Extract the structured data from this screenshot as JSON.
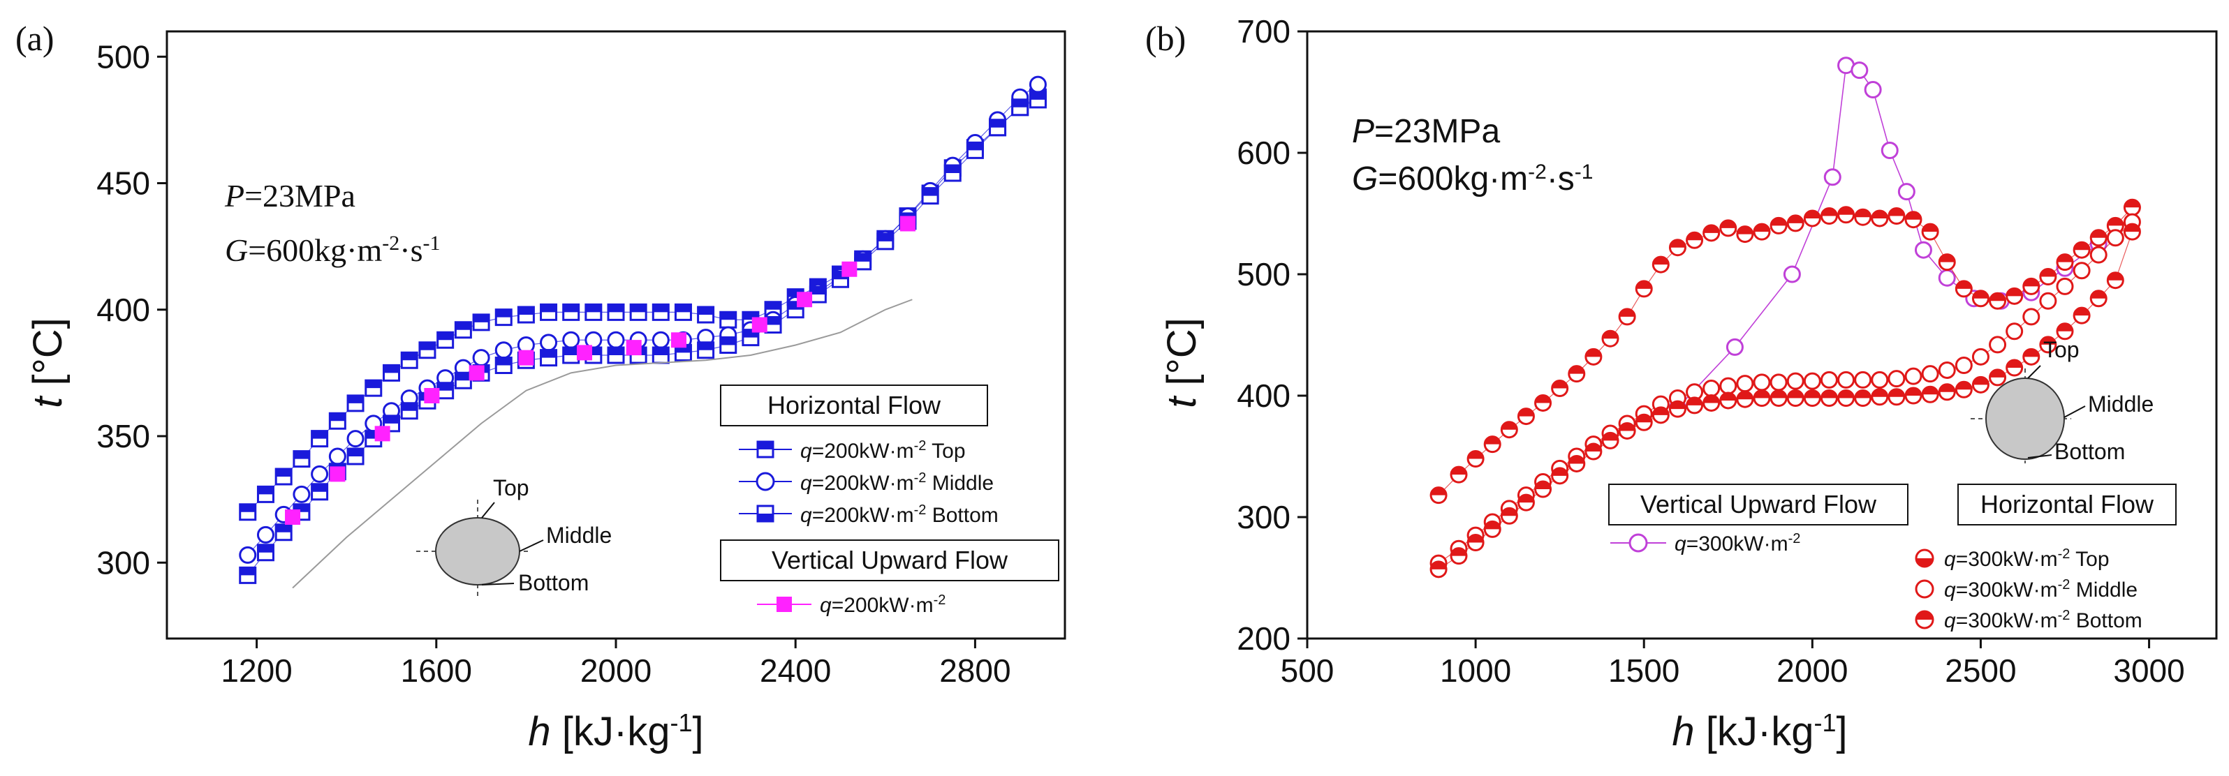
{
  "panels": {
    "a": {
      "letter": "(a)",
      "params": {
        "p_sym": "P",
        "p_val": "=23MPa",
        "g_sym": "G",
        "g_val": "=600kg·m",
        "g_exp1": "-2",
        "g_mid": "·s",
        "g_exp2": "-1"
      },
      "legend": {
        "group1": "Horizontal Flow",
        "group2": "Vertical Upward Flow",
        "q": "q",
        "q_unit": "=200kW·m",
        "q_exp": "-2",
        "items": [
          "Top",
          "Middle",
          "Bottom"
        ]
      },
      "pipe": {
        "top": "Top",
        "middle": "Middle",
        "bottom": "Bottom"
      }
    },
    "b": {
      "letter": "(b)",
      "params": {
        "p_sym": "P",
        "p_val": "=23MPa",
        "g_sym": "G",
        "g_val": "=600kg·m",
        "g_exp1": "-2",
        "g_mid": "·s",
        "g_exp2": "-1"
      },
      "legend": {
        "group1": "Vertical Upward Flow",
        "group2": "Horizontal Flow",
        "q": "q",
        "q_unit": "=300kW·m",
        "q_exp": "-2",
        "items": [
          "Top",
          "Middle",
          "Bottom"
        ]
      },
      "pipe": {
        "top": "Top",
        "middle": "Middle",
        "bottom": "Bottom"
      }
    }
  },
  "chart_data": [
    {
      "type": "scatter",
      "xlabel": "h [kJ·kg-1]",
      "ylabel": "t [°C]",
      "xlim": [
        1000,
        3000
      ],
      "ylim": [
        270,
        510
      ],
      "xticks": [
        1200,
        1600,
        2000,
        2400,
        2800
      ],
      "yticks": [
        300,
        350,
        400,
        450,
        500
      ],
      "grid": false,
      "series": [
        {
          "name": "q=200kW·m-2 Top",
          "color": "#1a1adb",
          "marker": "square-half",
          "x": [
            1180,
            1220,
            1260,
            1300,
            1340,
            1380,
            1420,
            1460,
            1500,
            1540,
            1580,
            1620,
            1660,
            1700,
            1750,
            1800,
            1850,
            1900,
            1950,
            2000,
            2050,
            2100,
            2150,
            2200,
            2250,
            2300,
            2350,
            2400,
            2450,
            2500,
            2550,
            2600,
            2650,
            2700,
            2750,
            2800,
            2850,
            2900,
            2940
          ],
          "y": [
            320,
            327,
            334,
            341,
            349,
            356,
            363,
            369,
            375,
            380,
            384,
            388,
            392,
            395,
            397,
            398,
            399,
            399,
            399,
            399,
            399,
            399,
            399,
            398,
            396,
            396,
            400,
            405,
            409,
            414,
            420,
            428,
            437,
            446,
            456,
            464,
            472,
            480,
            484
          ]
        },
        {
          "name": "q=200kW·m-2 Middle",
          "color": "#1a1adb",
          "marker": "circle-open",
          "x": [
            1180,
            1220,
            1260,
            1300,
            1340,
            1380,
            1420,
            1460,
            1500,
            1540,
            1580,
            1620,
            1660,
            1700,
            1750,
            1800,
            1850,
            1900,
            1950,
            2000,
            2050,
            2100,
            2150,
            2200,
            2250,
            2300,
            2350,
            2400,
            2450,
            2500,
            2550,
            2600,
            2650,
            2700,
            2750,
            2800,
            2850,
            2900,
            2940
          ],
          "y": [
            303,
            311,
            319,
            327,
            335,
            342,
            349,
            355,
            360,
            365,
            369,
            373,
            377,
            381,
            384,
            386,
            387,
            388,
            388,
            388,
            388,
            388,
            388,
            389,
            390,
            392,
            396,
            402,
            407,
            413,
            420,
            428,
            437,
            447,
            457,
            466,
            475,
            484,
            489
          ]
        },
        {
          "name": "q=200kW·m-2 Bottom",
          "color": "#1a1adb",
          "marker": "square-half",
          "x": [
            1180,
            1220,
            1260,
            1300,
            1340,
            1380,
            1420,
            1460,
            1500,
            1540,
            1580,
            1620,
            1660,
            1700,
            1750,
            1800,
            1850,
            1900,
            1950,
            2000,
            2050,
            2100,
            2150,
            2200,
            2250,
            2300,
            2350,
            2400,
            2450,
            2500,
            2550,
            2600,
            2650,
            2700,
            2750,
            2800,
            2850,
            2900,
            2940
          ],
          "y": [
            295,
            304,
            312,
            320,
            328,
            336,
            342,
            349,
            355,
            360,
            364,
            368,
            372,
            375,
            378,
            380,
            381,
            382,
            382,
            382,
            382,
            382,
            383,
            384,
            386,
            389,
            394,
            400,
            406,
            412,
            419,
            427,
            435,
            445,
            454,
            463,
            472,
            480,
            483
          ]
        },
        {
          "name": "q=200kW·m-2",
          "color": "#ff22ff",
          "marker": "square-filled",
          "x": [
            1280,
            1380,
            1480,
            1590,
            1690,
            1800,
            1930,
            2040,
            2140,
            2320,
            2420,
            2520,
            2650
          ],
          "y": [
            318,
            335,
            351,
            366,
            375,
            381,
            383,
            385,
            388,
            394,
            404,
            416,
            434
          ]
        },
        {
          "name": "",
          "color": "#9a9a9a",
          "marker": "line",
          "x": [
            1280,
            1400,
            1500,
            1600,
            1700,
            1800,
            1900,
            2000,
            2100,
            2200,
            2300,
            2400,
            2500,
            2600,
            2660
          ],
          "y": [
            290,
            310,
            325,
            340,
            355,
            368,
            375,
            378,
            379,
            380,
            382,
            386,
            391,
            400,
            404
          ]
        }
      ]
    },
    {
      "type": "scatter",
      "xlabel": "h [kJ·kg-1]",
      "ylabel": "t [°C]",
      "xlim": [
        500,
        3200
      ],
      "ylim": [
        200,
        700
      ],
      "xticks": [
        500,
        1000,
        1500,
        2000,
        2500,
        3000
      ],
      "yticks": [
        200,
        300,
        400,
        500,
        600,
        700
      ],
      "grid": false,
      "series": [
        {
          "name": "q=300kW·m-2",
          "color": "#c040d8",
          "marker": "circle-open-line",
          "x": [
            1600,
            1770,
            1940,
            2060,
            2100,
            2140,
            2180,
            2230,
            2280,
            2330,
            2400,
            2480,
            2560,
            2650,
            2750,
            2850
          ],
          "y": [
            390,
            440,
            500,
            580,
            672,
            668,
            652,
            602,
            568,
            520,
            497,
            480,
            478,
            485,
            505,
            525
          ]
        },
        {
          "name": "q=300kW·m-2 Top",
          "color": "#e01818",
          "marker": "circle-half",
          "x": [
            890,
            950,
            1000,
            1050,
            1100,
            1150,
            1200,
            1250,
            1300,
            1350,
            1400,
            1450,
            1500,
            1550,
            1600,
            1650,
            1700,
            1750,
            1800,
            1850,
            1900,
            1950,
            2000,
            2050,
            2100,
            2150,
            2200,
            2250,
            2300,
            2350,
            2400,
            2450,
            2500,
            2550,
            2600,
            2650,
            2700,
            2750,
            2800,
            2850,
            2900,
            2950
          ],
          "y": [
            318,
            335,
            348,
            360,
            372,
            383,
            394,
            406,
            418,
            432,
            447,
            465,
            488,
            508,
            522,
            528,
            534,
            538,
            533,
            535,
            540,
            542,
            546,
            548,
            549,
            547,
            546,
            548,
            545,
            535,
            510,
            488,
            480,
            478,
            482,
            490,
            498,
            510,
            520,
            530,
            540,
            555
          ]
        },
        {
          "name": "q=300kW·m-2 Middle",
          "color": "#e01818",
          "marker": "circle-open",
          "x": [
            890,
            950,
            1000,
            1050,
            1100,
            1150,
            1200,
            1250,
            1300,
            1350,
            1400,
            1450,
            1500,
            1550,
            1600,
            1650,
            1700,
            1750,
            1800,
            1850,
            1900,
            1950,
            2000,
            2050,
            2100,
            2150,
            2200,
            2250,
            2300,
            2350,
            2400,
            2450,
            2500,
            2550,
            2600,
            2650,
            2700,
            2750,
            2800,
            2850,
            2900,
            2950
          ],
          "y": [
            262,
            274,
            285,
            296,
            307,
            318,
            329,
            340,
            350,
            360,
            369,
            377,
            385,
            393,
            398,
            403,
            406,
            408,
            410,
            411,
            411,
            412,
            412,
            413,
            413,
            413,
            413,
            414,
            416,
            418,
            421,
            425,
            432,
            442,
            453,
            465,
            478,
            490,
            503,
            516,
            530,
            543
          ]
        },
        {
          "name": "q=300kW·m-2 Bottom",
          "color": "#e01818",
          "marker": "circle-half",
          "x": [
            890,
            950,
            1000,
            1050,
            1100,
            1150,
            1200,
            1250,
            1300,
            1350,
            1400,
            1450,
            1500,
            1550,
            1600,
            1650,
            1700,
            1750,
            1800,
            1850,
            1900,
            1950,
            2000,
            2050,
            2100,
            2150,
            2200,
            2250,
            2300,
            2350,
            2400,
            2450,
            2500,
            2550,
            2600,
            2650,
            2700,
            2750,
            2800,
            2850,
            2900,
            2950
          ],
          "y": [
            257,
            268,
            279,
            290,
            301,
            312,
            323,
            334,
            344,
            354,
            363,
            371,
            378,
            384,
            389,
            392,
            394,
            396,
            397,
            398,
            398,
            398,
            398,
            398,
            398,
            398,
            399,
            399,
            400,
            401,
            403,
            405,
            409,
            415,
            423,
            432,
            442,
            453,
            466,
            480,
            495,
            535
          ]
        }
      ]
    }
  ]
}
